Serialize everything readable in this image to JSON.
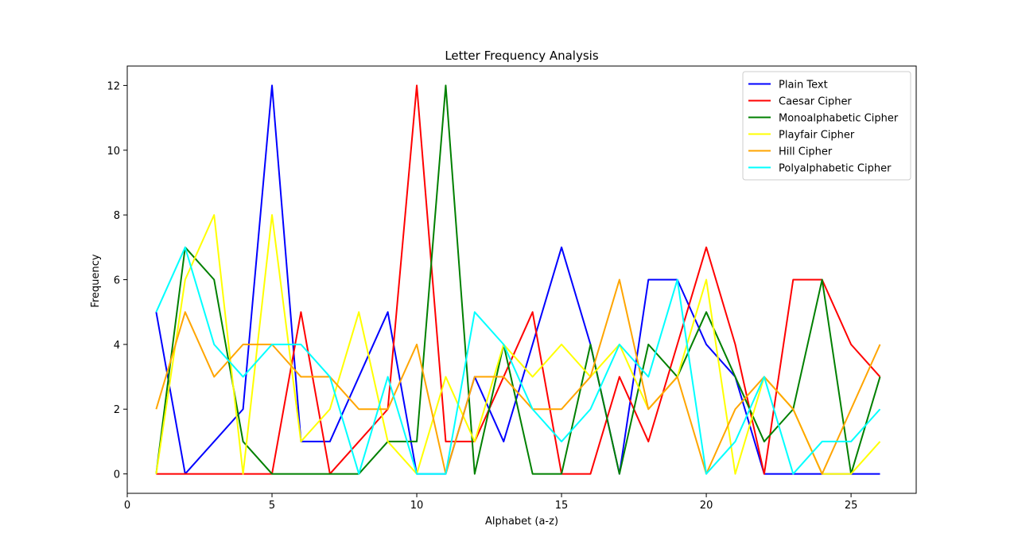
{
  "chart_data": {
    "type": "line",
    "title": "Letter Frequency Analysis",
    "xlabel": "Alphabet (a-z)",
    "ylabel": "Frequency",
    "xlim": [
      0,
      27.25
    ],
    "ylim": [
      -0.6,
      12.6
    ],
    "xticks": [
      0,
      5,
      10,
      15,
      20,
      25
    ],
    "yticks": [
      0,
      2,
      4,
      6,
      8,
      10,
      12
    ],
    "grid": false,
    "legend_position": "top-right",
    "x": [
      1,
      2,
      3,
      4,
      5,
      6,
      7,
      8,
      9,
      10,
      11,
      12,
      13,
      14,
      15,
      16,
      17,
      18,
      19,
      20,
      21,
      22,
      23,
      24,
      25,
      26
    ],
    "series": [
      {
        "name": "Plain Text",
        "color": "#0000ff",
        "values": [
          5,
          0,
          1,
          2,
          12,
          1,
          1,
          3,
          5,
          0,
          0,
          3,
          1,
          4,
          7,
          4,
          0,
          6,
          6,
          4,
          3,
          0,
          0,
          0,
          0,
          0
        ]
      },
      {
        "name": "Caesar Cipher",
        "color": "#ff0000",
        "values": [
          0,
          0,
          0,
          0,
          0,
          5,
          0,
          1,
          2,
          12,
          1,
          1,
          3,
          5,
          0,
          0,
          3,
          1,
          4,
          7,
          4,
          0,
          6,
          6,
          4,
          3
        ]
      },
      {
        "name": "Monoalphabetic Cipher",
        "color": "#008000",
        "values": [
          0,
          7,
          6,
          1,
          0,
          0,
          0,
          0,
          1,
          1,
          12,
          0,
          4,
          0,
          0,
          4,
          0,
          4,
          3,
          5,
          3,
          1,
          2,
          6,
          0,
          3
        ]
      },
      {
        "name": "Playfair Cipher",
        "color": "#ffff00",
        "values": [
          0,
          6,
          8,
          0,
          8,
          1,
          2,
          5,
          1,
          0,
          3,
          1,
          4,
          3,
          4,
          3,
          4,
          2,
          3,
          6,
          0,
          3,
          2,
          0,
          0,
          1
        ]
      },
      {
        "name": "Hill Cipher",
        "color": "#ffa500",
        "values": [
          2,
          5,
          3,
          4,
          4,
          3,
          3,
          2,
          2,
          4,
          0,
          3,
          3,
          2,
          2,
          3,
          6,
          2,
          3,
          0,
          2,
          3,
          2,
          0,
          2,
          4
        ]
      },
      {
        "name": "Polyalphabetic Cipher",
        "color": "#00ffff",
        "values": [
          5,
          7,
          4,
          3,
          4,
          4,
          3,
          0,
          3,
          0,
          0,
          5,
          4,
          2,
          1,
          2,
          4,
          3,
          6,
          0,
          1,
          3,
          0,
          1,
          1,
          2
        ]
      }
    ]
  }
}
